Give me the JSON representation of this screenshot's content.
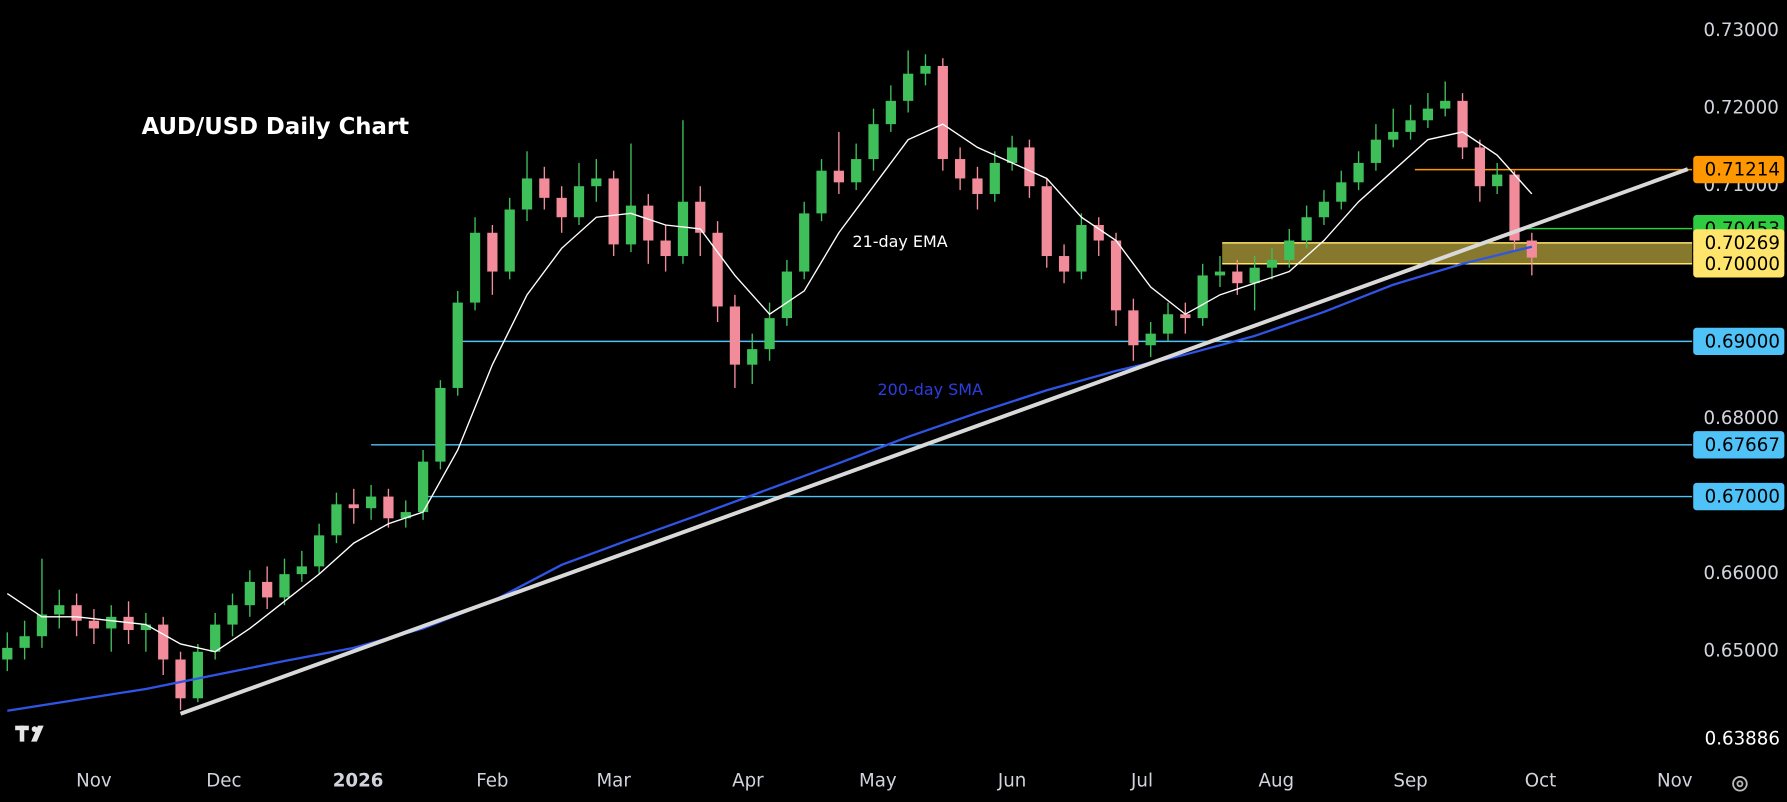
{
  "chart_data": {
    "type": "candlestick",
    "title": "AUD/USD Daily Chart",
    "up_color": "#3fbf5a",
    "down_color": "#f28b9a",
    "xlim": [
      -21.6,
      369
    ],
    "ylim": [
      0.6368,
      0.734
    ],
    "xticks": [
      {
        "value": 0,
        "label": "Nov"
      },
      {
        "value": 30,
        "label": "Dec"
      },
      {
        "value": 61,
        "label": "2026"
      },
      {
        "value": 92,
        "label": "Feb"
      },
      {
        "value": 120,
        "label": "Mar"
      },
      {
        "value": 151,
        "label": "Apr"
      },
      {
        "value": 181,
        "label": "May"
      },
      {
        "value": 212,
        "label": "Jun"
      },
      {
        "value": 242,
        "label": "Jul"
      },
      {
        "value": 273,
        "label": "Aug"
      },
      {
        "value": 304,
        "label": "Sep"
      },
      {
        "value": 334,
        "label": "Oct"
      },
      {
        "value": 365,
        "label": "Nov"
      }
    ],
    "yticks": [
      {
        "value": 0.65,
        "label": "0.65000"
      },
      {
        "value": 0.66,
        "label": "0.66000"
      },
      {
        "value": 0.67,
        "label": "0.67000"
      },
      {
        "value": 0.68,
        "label": "0.68000"
      },
      {
        "value": 0.69,
        "label": "0.69000"
      },
      {
        "value": 0.7,
        "label": "0.70000"
      },
      {
        "value": 0.71,
        "label": "0.71000"
      },
      {
        "value": 0.72,
        "label": "0.72000"
      },
      {
        "value": 0.73,
        "label": "0.73000"
      }
    ],
    "x": [
      -20,
      -16,
      -12,
      -8,
      -4,
      0,
      4,
      8,
      12,
      16,
      20,
      24,
      28,
      32,
      36,
      40,
      44,
      48,
      52,
      56,
      60,
      64,
      68,
      72,
      76,
      80,
      84,
      88,
      92,
      96,
      100,
      104,
      108,
      112,
      116,
      120,
      124,
      128,
      132,
      136,
      140,
      144,
      148,
      152,
      156,
      160,
      164,
      168,
      172,
      176,
      180,
      184,
      188,
      192,
      196,
      200,
      204,
      208,
      212,
      216,
      220,
      224,
      228,
      232,
      236,
      240,
      244,
      248,
      252,
      256,
      260,
      264,
      268,
      272,
      276,
      280,
      284,
      288,
      292,
      296,
      300,
      304,
      308,
      312,
      316,
      320,
      324,
      328,
      332
    ],
    "open": [
      0.649,
      0.6505,
      0.652,
      0.6548,
      0.656,
      0.654,
      0.653,
      0.6545,
      0.6528,
      0.6535,
      0.649,
      0.644,
      0.65,
      0.6535,
      0.656,
      0.659,
      0.657,
      0.66,
      0.661,
      0.665,
      0.669,
      0.6685,
      0.67,
      0.6672,
      0.668,
      0.6745,
      0.684,
      0.695,
      0.704,
      0.699,
      0.707,
      0.711,
      0.7085,
      0.706,
      0.71,
      0.711,
      0.7025,
      0.7075,
      0.703,
      0.701,
      0.708,
      0.704,
      0.6945,
      0.687,
      0.689,
      0.693,
      0.699,
      0.7065,
      0.712,
      0.7105,
      0.7135,
      0.718,
      0.721,
      0.7245,
      0.7255,
      0.7135,
      0.711,
      0.709,
      0.713,
      0.715,
      0.71,
      0.701,
      0.699,
      0.705,
      0.703,
      0.694,
      0.6895,
      0.691,
      0.6935,
      0.693,
      0.6985,
      0.699,
      0.6975,
      0.6995,
      0.7005,
      0.703,
      0.706,
      0.708,
      0.7105,
      0.713,
      0.716,
      0.717,
      0.7185,
      0.72,
      0.721,
      0.715,
      0.71,
      0.7115,
      0.703
    ],
    "high": [
      0.6525,
      0.654,
      0.662,
      0.658,
      0.6575,
      0.6555,
      0.656,
      0.6565,
      0.655,
      0.6545,
      0.65,
      0.651,
      0.655,
      0.6575,
      0.6605,
      0.661,
      0.662,
      0.663,
      0.6665,
      0.6705,
      0.671,
      0.6715,
      0.671,
      0.6695,
      0.676,
      0.685,
      0.6965,
      0.706,
      0.705,
      0.7085,
      0.7145,
      0.7125,
      0.71,
      0.713,
      0.7135,
      0.712,
      0.7155,
      0.709,
      0.705,
      0.7185,
      0.71,
      0.7055,
      0.696,
      0.691,
      0.695,
      0.7005,
      0.708,
      0.7135,
      0.717,
      0.7155,
      0.72,
      0.723,
      0.7275,
      0.727,
      0.7265,
      0.715,
      0.7125,
      0.7145,
      0.7165,
      0.716,
      0.711,
      0.7025,
      0.7065,
      0.706,
      0.704,
      0.6955,
      0.6925,
      0.695,
      0.695,
      0.7,
      0.701,
      0.7005,
      0.701,
      0.702,
      0.7045,
      0.7075,
      0.7095,
      0.712,
      0.7145,
      0.718,
      0.72,
      0.7205,
      0.722,
      0.7235,
      0.722,
      0.716,
      0.713,
      0.712,
      0.704
    ],
    "low": [
      0.6475,
      0.649,
      0.6505,
      0.653,
      0.652,
      0.651,
      0.65,
      0.651,
      0.65,
      0.647,
      0.6425,
      0.6435,
      0.649,
      0.652,
      0.6545,
      0.6555,
      0.656,
      0.659,
      0.66,
      0.664,
      0.6665,
      0.667,
      0.666,
      0.666,
      0.667,
      0.6735,
      0.683,
      0.694,
      0.696,
      0.698,
      0.7055,
      0.707,
      0.704,
      0.705,
      0.708,
      0.701,
      0.7015,
      0.7,
      0.699,
      0.7,
      0.701,
      0.6925,
      0.684,
      0.6845,
      0.6875,
      0.692,
      0.698,
      0.7055,
      0.709,
      0.7095,
      0.712,
      0.717,
      0.7195,
      0.723,
      0.712,
      0.7095,
      0.707,
      0.708,
      0.712,
      0.7085,
      0.6995,
      0.6975,
      0.698,
      0.701,
      0.692,
      0.6875,
      0.688,
      0.69,
      0.691,
      0.692,
      0.697,
      0.696,
      0.694,
      0.698,
      0.6995,
      0.702,
      0.705,
      0.707,
      0.7095,
      0.712,
      0.715,
      0.716,
      0.7175,
      0.719,
      0.7135,
      0.708,
      0.709,
      0.7015,
      0.6985
    ],
    "close": [
      0.6505,
      0.652,
      0.6548,
      0.656,
      0.654,
      0.653,
      0.6545,
      0.6528,
      0.6535,
      0.649,
      0.644,
      0.65,
      0.6535,
      0.656,
      0.659,
      0.657,
      0.66,
      0.661,
      0.665,
      0.669,
      0.6685,
      0.67,
      0.6672,
      0.668,
      0.6745,
      0.684,
      0.695,
      0.704,
      0.699,
      0.707,
      0.711,
      0.7085,
      0.706,
      0.71,
      0.711,
      0.7025,
      0.7075,
      0.703,
      0.701,
      0.708,
      0.704,
      0.6945,
      0.687,
      0.689,
      0.693,
      0.699,
      0.7065,
      0.712,
      0.7105,
      0.7135,
      0.718,
      0.721,
      0.7245,
      0.7255,
      0.7135,
      0.711,
      0.709,
      0.713,
      0.715,
      0.71,
      0.701,
      0.699,
      0.705,
      0.703,
      0.694,
      0.6895,
      0.691,
      0.6935,
      0.693,
      0.6985,
      0.699,
      0.6975,
      0.6995,
      0.7005,
      0.703,
      0.706,
      0.708,
      0.7105,
      0.713,
      0.716,
      0.717,
      0.7185,
      0.72,
      0.721,
      0.715,
      0.71,
      0.7115,
      0.703,
      0.7008
    ],
    "lines": [
      {
        "label": "21-day EMA",
        "color": "#ffffff",
        "label_color": "#ffffff",
        "x": [
          -20,
          -12,
          -4,
          4,
          12,
          20,
          28,
          36,
          44,
          52,
          60,
          68,
          76,
          84,
          92,
          100,
          108,
          116,
          124,
          132,
          140,
          148,
          156,
          164,
          172,
          180,
          188,
          196,
          204,
          212,
          220,
          228,
          236,
          244,
          252,
          260,
          268,
          276,
          284,
          292,
          300,
          308,
          316,
          324,
          332
        ],
        "values": [
          0.6575,
          0.6545,
          0.6545,
          0.654,
          0.6535,
          0.651,
          0.65,
          0.653,
          0.6565,
          0.66,
          0.664,
          0.6665,
          0.668,
          0.676,
          0.687,
          0.696,
          0.702,
          0.706,
          0.7065,
          0.705,
          0.7045,
          0.6985,
          0.6935,
          0.6965,
          0.704,
          0.71,
          0.716,
          0.718,
          0.715,
          0.713,
          0.711,
          0.706,
          0.703,
          0.697,
          0.6935,
          0.696,
          0.6975,
          0.699,
          0.703,
          0.708,
          0.712,
          0.716,
          0.717,
          0.714,
          0.709
        ]
      },
      {
        "label": "200-day SMA",
        "color": "#2f55e6",
        "label_color": "#2b3fe0",
        "x": [
          -20,
          -4,
          12,
          28,
          44,
          60,
          76,
          92,
          108,
          124,
          140,
          156,
          172,
          188,
          204,
          220,
          236,
          252,
          268,
          284,
          300,
          316,
          332
        ],
        "values": [
          0.6424,
          0.6438,
          0.6452,
          0.647,
          0.6488,
          0.6505,
          0.653,
          0.6565,
          0.6612,
          0.6645,
          0.6677,
          0.671,
          0.6743,
          0.6777,
          0.6808,
          0.6837,
          0.6862,
          0.6883,
          0.6907,
          0.6938,
          0.6973,
          0.7,
          0.7022
        ]
      }
    ],
    "trendline": {
      "color": "#d9d9d9",
      "x": [
        20,
        368
      ],
      "values": [
        0.642,
        0.7122
      ]
    },
    "zone": {
      "low": 0.7,
      "high": 0.70269,
      "start": 260.5,
      "color": "#e0c84a"
    },
    "levels": [
      {
        "value": 0.71214,
        "color": "#ff9800",
        "start": 305
      },
      {
        "value": 0.70453,
        "color": "#2ecc40",
        "start": 328
      },
      {
        "value": 0.70269,
        "color": "#ffe56b",
        "start": 260.5
      },
      {
        "value": 0.7,
        "label": "0.70000",
        "color": "#ffe56b",
        "start": 260.5
      },
      {
        "value": 0.69,
        "label": "0.69000",
        "color": "#4fc3f7",
        "start": 84.5
      },
      {
        "value": 0.67667,
        "color": "#4fc3f7",
        "start": 64
      },
      {
        "value": 0.67,
        "label": "0.67000",
        "color": "#4fc3f7",
        "start": 76
      }
    ],
    "crosshair_price": 0.63886
  }
}
